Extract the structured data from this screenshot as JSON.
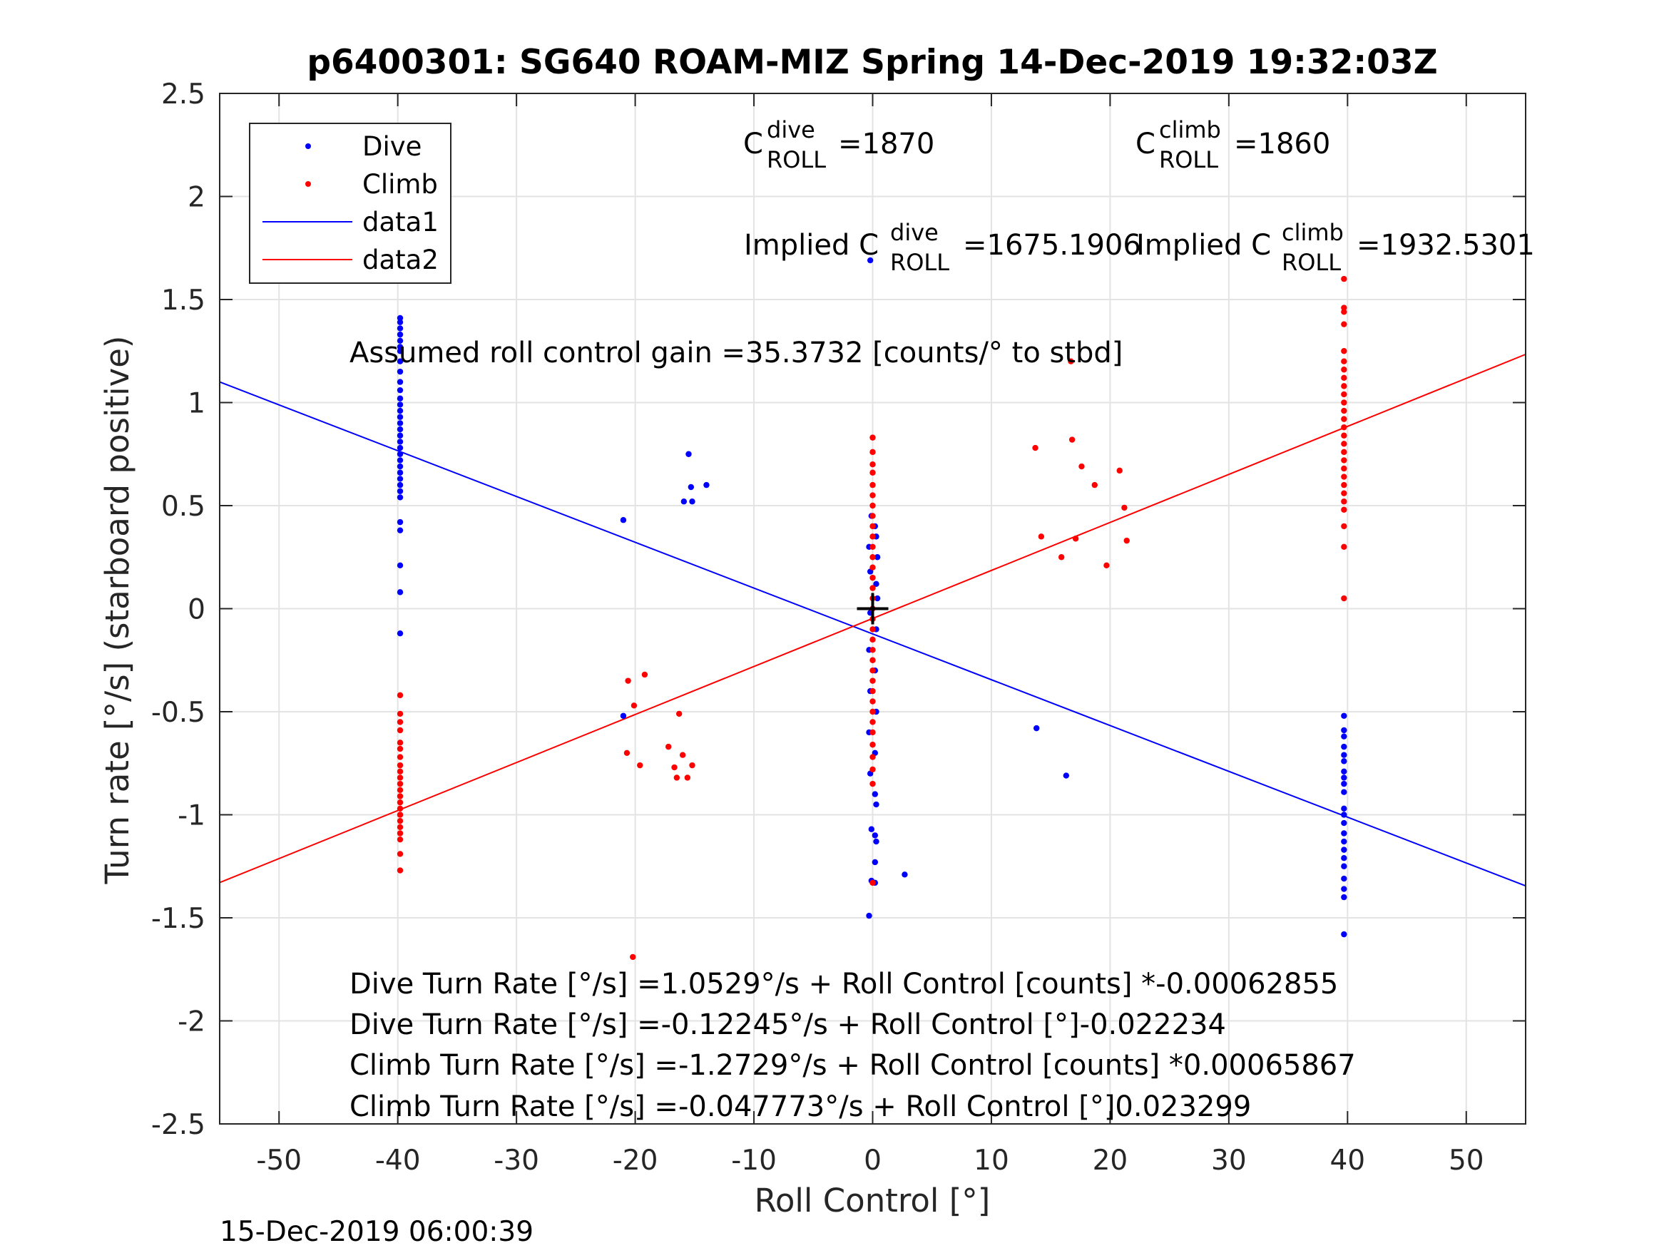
{
  "chart_data": {
    "type": "scatter",
    "title": "p6400301: SG640 ROAM-MIZ Spring 14-Dec-2019 19:32:03Z",
    "xlabel": "Roll Control [°]",
    "ylabel": "Turn rate [°/s] (starboard positive)",
    "xlim": [
      -55,
      55
    ],
    "ylim": [
      -2.5,
      2.5
    ],
    "xticks": [
      "-50",
      "-40",
      "-30",
      "-20",
      "-10",
      "0",
      "10",
      "20",
      "30",
      "40",
      "50"
    ],
    "yticks": [
      "-2.5",
      "-2",
      "-1.5",
      "-1",
      "-0.5",
      "0",
      "0.5",
      "1",
      "1.5",
      "2",
      "2.5"
    ],
    "grid": true,
    "legend_position": "top-left",
    "legend": [
      "Dive",
      "Climb",
      "data1",
      "data2"
    ],
    "timestamp": "15-Dec-2019 06:00:39",
    "annotations": {
      "c_dive_base": "C",
      "c_dive_sup": "dive",
      "c_dive_sub": "ROLL",
      "c_dive_val": "=1870",
      "c_climb_base": "C",
      "c_climb_sup": "climb",
      "c_climb_sub": "ROLL",
      "c_climb_val": "=1860",
      "implied_dive_pre": "Implied C",
      "implied_dive_sup": "dive",
      "implied_dive_sub": "ROLL",
      "implied_dive_val": "=1675.1906",
      "implied_climb_pre": "Implied C",
      "implied_climb_sup": "climb",
      "implied_climb_sub": "ROLL",
      "implied_climb_val": "=1932.5301",
      "gain": "Assumed roll control gain =35.3732 [counts/° to stbd]",
      "eq1": "Dive Turn Rate [°/s] =1.0529°/s + Roll Control [counts] *-0.00062855",
      "eq2": "Dive Turn Rate [°/s] =-0.12245°/s + Roll Control [°]-0.022234",
      "eq3": "Climb Turn Rate [°/s] =-1.2729°/s + Roll Control [counts] *0.00065867",
      "eq4": "Climb Turn Rate [°/s] =-0.047773°/s + Roll Control [°]0.023299"
    },
    "series": [
      {
        "name": "Dive",
        "kind": "points",
        "color": "#0000ff",
        "points": [
          [
            -39.8,
            1.41
          ],
          [
            -39.8,
            1.39
          ],
          [
            -39.8,
            1.36
          ],
          [
            -39.8,
            1.33
          ],
          [
            -39.8,
            1.3
          ],
          [
            -39.8,
            1.27
          ],
          [
            -39.8,
            1.25
          ],
          [
            -39.8,
            1.2
          ],
          [
            -39.8,
            1.15
          ],
          [
            -39.8,
            1.1
          ],
          [
            -39.8,
            1.06
          ],
          [
            -39.8,
            1.02
          ],
          [
            -39.8,
            0.99
          ],
          [
            -39.8,
            0.96
          ],
          [
            -39.8,
            0.93
          ],
          [
            -39.8,
            0.9
          ],
          [
            -39.8,
            0.87
          ],
          [
            -39.8,
            0.84
          ],
          [
            -39.8,
            0.81
          ],
          [
            -39.8,
            0.78
          ],
          [
            -39.8,
            0.75
          ],
          [
            -39.8,
            0.72
          ],
          [
            -39.8,
            0.69
          ],
          [
            -39.8,
            0.66
          ],
          [
            -39.8,
            0.63
          ],
          [
            -39.8,
            0.6
          ],
          [
            -39.8,
            0.57
          ],
          [
            -39.8,
            0.54
          ],
          [
            -39.8,
            0.42
          ],
          [
            -39.8,
            0.38
          ],
          [
            -39.8,
            0.21
          ],
          [
            -39.8,
            0.08
          ],
          [
            -39.8,
            -0.12
          ],
          [
            -21.0,
            0.43
          ],
          [
            -21.0,
            -0.52
          ],
          [
            -15.9,
            0.52
          ],
          [
            -15.5,
            0.75
          ],
          [
            -15.3,
            0.59
          ],
          [
            -15.2,
            0.52
          ],
          [
            -14.0,
            0.6
          ],
          [
            -0.2,
            1.69
          ],
          [
            -0.1,
            0.45
          ],
          [
            0.2,
            0.4
          ],
          [
            0.3,
            0.35
          ],
          [
            -0.3,
            0.3
          ],
          [
            0.4,
            0.25
          ],
          [
            -0.2,
            0.18
          ],
          [
            0.3,
            0.12
          ],
          [
            0.4,
            0.05
          ],
          [
            -0.2,
            -0.02
          ],
          [
            0.3,
            -0.1
          ],
          [
            -0.3,
            -0.2
          ],
          [
            0.2,
            -0.3
          ],
          [
            -0.2,
            -0.4
          ],
          [
            0.3,
            -0.5
          ],
          [
            -0.3,
            -0.6
          ],
          [
            0.2,
            -0.7
          ],
          [
            -0.2,
            -0.8
          ],
          [
            0.2,
            -0.9
          ],
          [
            0.3,
            -0.95
          ],
          [
            -0.1,
            -1.07
          ],
          [
            0.2,
            -1.1
          ],
          [
            0.3,
            -1.13
          ],
          [
            0.2,
            -1.23
          ],
          [
            -0.1,
            -1.32
          ],
          [
            0.2,
            -1.33
          ],
          [
            -0.3,
            -1.49
          ],
          [
            2.7,
            -1.29
          ],
          [
            13.8,
            -0.58
          ],
          [
            16.3,
            -0.81
          ],
          [
            39.7,
            -0.52
          ],
          [
            39.7,
            -0.59
          ],
          [
            39.7,
            -0.62
          ],
          [
            39.7,
            -0.67
          ],
          [
            39.7,
            -0.71
          ],
          [
            39.7,
            -0.74
          ],
          [
            39.7,
            -0.79
          ],
          [
            39.7,
            -0.82
          ],
          [
            39.7,
            -0.85
          ],
          [
            39.7,
            -0.89
          ],
          [
            39.7,
            -0.97
          ],
          [
            39.7,
            -1.0
          ],
          [
            39.7,
            -1.04
          ],
          [
            39.7,
            -1.09
          ],
          [
            39.7,
            -1.13
          ],
          [
            39.7,
            -1.17
          ],
          [
            39.7,
            -1.21
          ],
          [
            39.7,
            -1.25
          ],
          [
            39.7,
            -1.31
          ],
          [
            39.7,
            -1.36
          ],
          [
            39.7,
            -1.4
          ],
          [
            39.7,
            -1.58
          ]
        ]
      },
      {
        "name": "Climb",
        "kind": "points",
        "color": "#ff0000",
        "points": [
          [
            -39.8,
            -0.42
          ],
          [
            -39.8,
            -0.51
          ],
          [
            -39.8,
            -0.55
          ],
          [
            -39.8,
            -0.59
          ],
          [
            -39.8,
            -0.65
          ],
          [
            -39.8,
            -0.68
          ],
          [
            -39.8,
            -0.72
          ],
          [
            -39.8,
            -0.76
          ],
          [
            -39.8,
            -0.79
          ],
          [
            -39.8,
            -0.82
          ],
          [
            -39.8,
            -0.85
          ],
          [
            -39.8,
            -0.88
          ],
          [
            -39.8,
            -0.91
          ],
          [
            -39.8,
            -0.94
          ],
          [
            -39.8,
            -0.97
          ],
          [
            -39.8,
            -1.0
          ],
          [
            -39.8,
            -1.03
          ],
          [
            -39.8,
            -1.06
          ],
          [
            -39.8,
            -1.09
          ],
          [
            -39.8,
            -1.12
          ],
          [
            -39.8,
            -1.19
          ],
          [
            -39.8,
            -1.27
          ],
          [
            -20.6,
            -0.35
          ],
          [
            -20.7,
            -0.7
          ],
          [
            -20.1,
            -0.47
          ],
          [
            -19.6,
            -0.76
          ],
          [
            -19.2,
            -0.32
          ],
          [
            -17.2,
            -0.67
          ],
          [
            -16.7,
            -0.77
          ],
          [
            -16.5,
            -0.82
          ],
          [
            -16.3,
            -0.51
          ],
          [
            -16.0,
            -0.71
          ],
          [
            -15.6,
            -0.82
          ],
          [
            -15.2,
            -0.76
          ],
          [
            -20.2,
            -1.69
          ],
          [
            0.0,
            0.83
          ],
          [
            0.0,
            0.76
          ],
          [
            0.0,
            0.7
          ],
          [
            0.0,
            0.66
          ],
          [
            0.0,
            0.6
          ],
          [
            0.0,
            0.55
          ],
          [
            0.0,
            0.5
          ],
          [
            0.0,
            0.45
          ],
          [
            0.0,
            0.4
          ],
          [
            0.0,
            0.35
          ],
          [
            0.0,
            0.3
          ],
          [
            0.0,
            0.25
          ],
          [
            0.0,
            0.2
          ],
          [
            0.0,
            0.15
          ],
          [
            0.0,
            0.1
          ],
          [
            0.0,
            0.05
          ],
          [
            0.0,
            0.0
          ],
          [
            0.0,
            -0.05
          ],
          [
            0.0,
            -0.1
          ],
          [
            0.0,
            -0.15
          ],
          [
            0.0,
            -0.2
          ],
          [
            0.0,
            -0.25
          ],
          [
            0.0,
            -0.3
          ],
          [
            0.0,
            -0.35
          ],
          [
            0.0,
            -0.4
          ],
          [
            0.0,
            -0.45
          ],
          [
            0.0,
            -0.5
          ],
          [
            0.0,
            -0.55
          ],
          [
            0.0,
            -0.6
          ],
          [
            0.0,
            -0.66
          ],
          [
            0.0,
            -0.72
          ],
          [
            0.0,
            -0.78
          ],
          [
            0.0,
            -0.85
          ],
          [
            0.0,
            -1.33
          ],
          [
            13.7,
            0.78
          ],
          [
            14.2,
            0.35
          ],
          [
            15.9,
            0.25
          ],
          [
            16.7,
            1.2
          ],
          [
            16.8,
            0.82
          ],
          [
            17.1,
            0.34
          ],
          [
            17.6,
            0.69
          ],
          [
            18.7,
            0.6
          ],
          [
            19.7,
            0.21
          ],
          [
            20.8,
            0.67
          ],
          [
            21.2,
            0.49
          ],
          [
            21.4,
            0.33
          ],
          [
            39.7,
            1.6
          ],
          [
            39.7,
            1.46
          ],
          [
            39.7,
            1.44
          ],
          [
            39.7,
            1.38
          ],
          [
            39.7,
            1.25
          ],
          [
            39.7,
            1.2
          ],
          [
            39.7,
            1.16
          ],
          [
            39.7,
            1.12
          ],
          [
            39.7,
            1.08
          ],
          [
            39.7,
            1.04
          ],
          [
            39.7,
            1.0
          ],
          [
            39.7,
            0.96
          ],
          [
            39.7,
            0.92
          ],
          [
            39.7,
            0.88
          ],
          [
            39.7,
            0.84
          ],
          [
            39.7,
            0.8
          ],
          [
            39.7,
            0.76
          ],
          [
            39.7,
            0.72
          ],
          [
            39.7,
            0.68
          ],
          [
            39.7,
            0.64
          ],
          [
            39.7,
            0.6
          ],
          [
            39.7,
            0.56
          ],
          [
            39.7,
            0.52
          ],
          [
            39.7,
            0.48
          ],
          [
            39.7,
            0.4
          ],
          [
            39.7,
            0.3
          ],
          [
            39.7,
            0.05
          ]
        ]
      },
      {
        "name": "data1",
        "kind": "line",
        "color": "#0000ff",
        "x": [
          -55,
          55
        ],
        "y": [
          1.1,
          -1.345
        ]
      },
      {
        "name": "data2",
        "kind": "line",
        "color": "#ff0000",
        "x": [
          -55,
          55
        ],
        "y": [
          -1.329,
          1.234
        ]
      }
    ],
    "marker": {
      "x": 0,
      "y": 0,
      "symbol": "+"
    }
  }
}
